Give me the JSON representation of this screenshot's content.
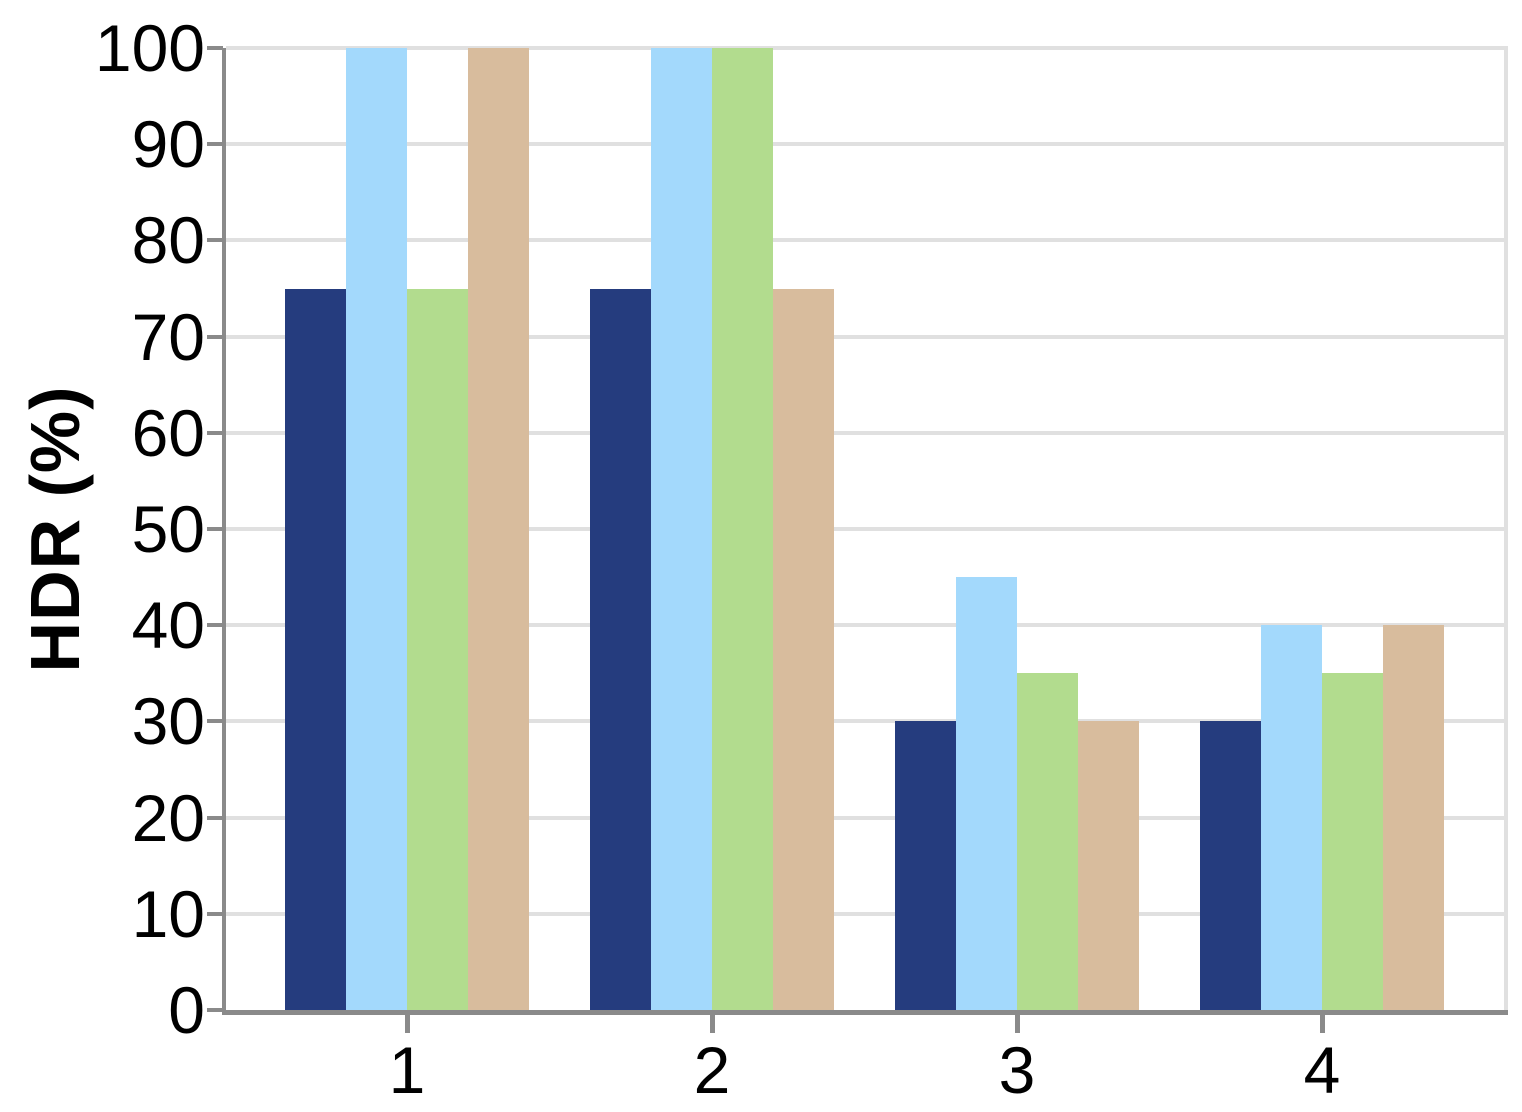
{
  "chart_data": {
    "type": "bar",
    "title": "",
    "xlabel": "",
    "ylabel": "HDR (%)",
    "categories": [
      "1",
      "2",
      "3",
      "4"
    ],
    "series": [
      {
        "name": "navy",
        "color": "#253c7e",
        "values": [
          75,
          75,
          30,
          30
        ]
      },
      {
        "name": "light-blue",
        "color": "#a3d9fc",
        "values": [
          100,
          100,
          45,
          40
        ]
      },
      {
        "name": "green",
        "color": "#b2dc8e",
        "values": [
          75,
          100,
          35,
          35
        ]
      },
      {
        "name": "tan",
        "color": "#d8bc9d",
        "values": [
          100,
          75,
          30,
          40
        ]
      }
    ],
    "ylim": [
      0,
      100
    ],
    "yticks": [
      0,
      10,
      20,
      30,
      40,
      50,
      60,
      70,
      80,
      90,
      100
    ],
    "grid": true,
    "legend_position": "none"
  },
  "colors": {
    "axis_line": "#8a8a8a",
    "gridline": "#e0e0e0",
    "panel_border": "#e0e0e0",
    "background": "#ffffff",
    "text": "#000000"
  }
}
